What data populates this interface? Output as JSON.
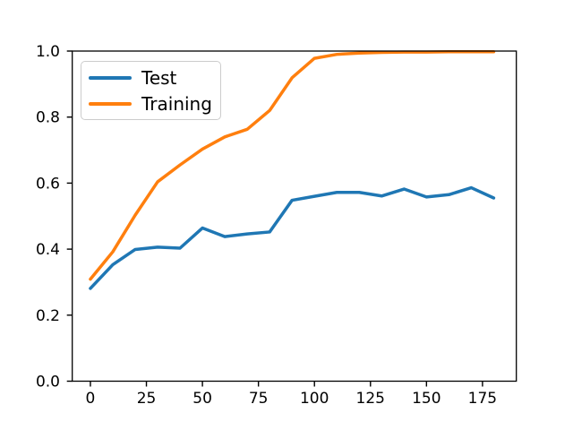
{
  "figure": {
    "background": "#ffffff",
    "title": ""
  },
  "chart_data": {
    "type": "line",
    "title": "",
    "xlabel": "",
    "ylabel": "",
    "x": [
      0,
      10,
      20,
      30,
      40,
      50,
      60,
      70,
      80,
      90,
      100,
      110,
      120,
      130,
      140,
      150,
      160,
      170,
      180
    ],
    "series": [
      {
        "name": "Test",
        "color": "#1f77b4",
        "values": [
          0.281,
          0.353,
          0.399,
          0.406,
          0.403,
          0.464,
          0.438,
          0.446,
          0.452,
          0.548,
          0.56,
          0.572,
          0.572,
          0.561,
          0.582,
          0.558,
          0.565,
          0.586,
          0.555
        ]
      },
      {
        "name": "Training",
        "color": "#ff7f0e",
        "values": [
          0.309,
          0.392,
          0.503,
          0.604,
          0.655,
          0.703,
          0.74,
          0.763,
          0.82,
          0.919,
          0.978,
          0.99,
          0.994,
          0.996,
          0.997,
          0.997,
          0.998,
          0.998,
          0.998
        ]
      }
    ],
    "xlim": [
      -8.1,
      190.1
    ],
    "ylim": [
      0,
      1
    ],
    "xticks": {
      "values": [
        0,
        25,
        50,
        75,
        100,
        125,
        150,
        175
      ],
      "labels": [
        "0",
        "25",
        "50",
        "75",
        "100",
        "125",
        "150",
        "175"
      ]
    },
    "yticks": {
      "values": [
        0,
        0.2,
        0.4,
        0.6,
        0.8,
        1.0
      ],
      "labels": [
        "0.0",
        "0.2",
        "0.4",
        "0.6",
        "0.8",
        "1.0"
      ]
    },
    "grid": false,
    "legend": {
      "position": "upper-left",
      "items": [
        {
          "label": "Test",
          "color": "#1f77b4"
        },
        {
          "label": "Training",
          "color": "#ff7f0e"
        }
      ]
    },
    "axis_color": "#000000"
  }
}
